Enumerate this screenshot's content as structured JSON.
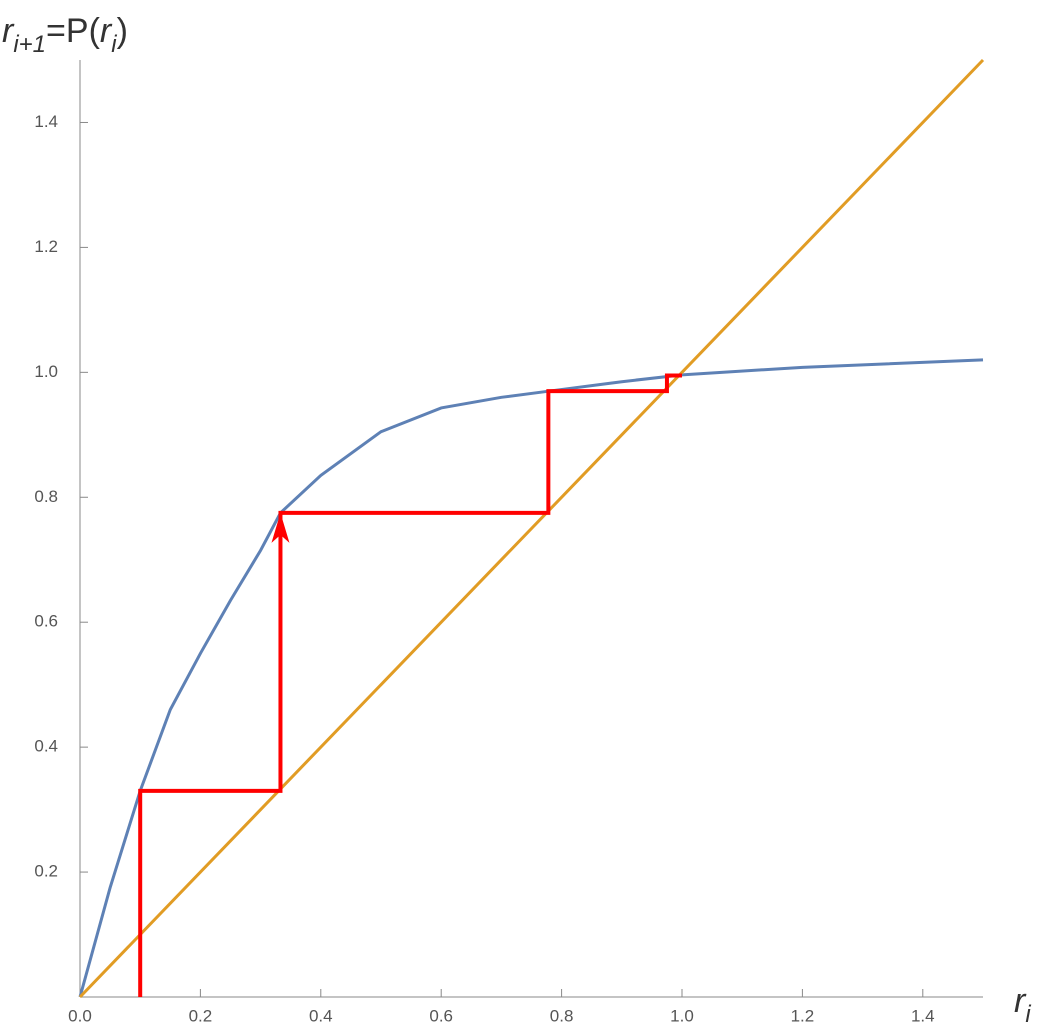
{
  "chart_data": {
    "type": "line",
    "x_label": [
      "r",
      "i"
    ],
    "y_label": [
      "r",
      "i+1",
      "=P(",
      "r",
      "i",
      ")"
    ],
    "xlim": [
      0,
      1.5
    ],
    "ylim": [
      0,
      1.5
    ],
    "xticks": [
      {
        "value": 0,
        "label": "0.0"
      },
      0.2,
      0.4,
      0.6,
      0.8,
      {
        "value": 1,
        "label": "1.0"
      },
      1.2,
      1.4
    ],
    "yticks": [
      0.2,
      0.4,
      0.6,
      0.8,
      {
        "value": 1,
        "label": "1.0"
      },
      1.2,
      1.4
    ],
    "series": [
      {
        "color": "#5e81b5",
        "x": [
          0,
          0.05,
          0.1,
          0.15,
          0.2,
          0.25,
          0.3,
          0.333,
          0.4,
          0.5,
          0.6,
          0.7,
          0.78,
          0.9,
          1.0,
          1.2,
          1.5
        ],
        "values": [
          0,
          0.175,
          0.33,
          0.46,
          0.55,
          0.635,
          0.715,
          0.775,
          0.835,
          0.905,
          0.943,
          0.96,
          0.97,
          0.985,
          0.996,
          1.008,
          1.02
        ]
      },
      {
        "color": "#e19c24",
        "x": [
          0,
          1.5
        ],
        "values": [
          0,
          1.5
        ]
      },
      {
        "color": "#ff0000",
        "x": [
          0.1,
          0.1,
          0.333,
          0.333,
          0.778,
          0.778,
          0.975,
          0.975,
          1.0
        ],
        "values": [
          0,
          0.33,
          0.33,
          0.775,
          0.775,
          0.97,
          0.97,
          0.995,
          0.995
        ]
      }
    ]
  }
}
